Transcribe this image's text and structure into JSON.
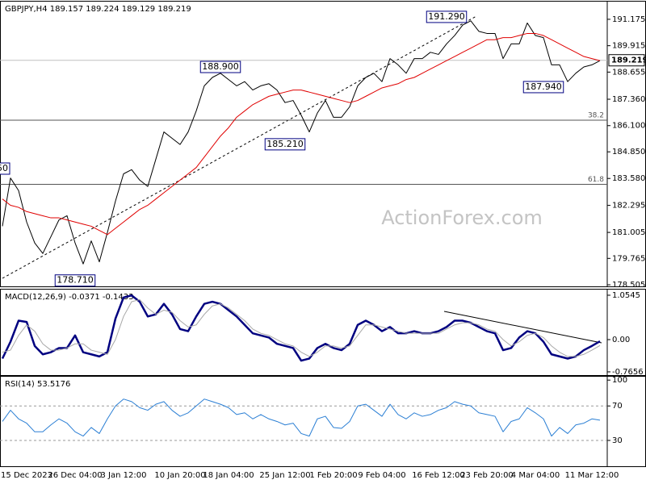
{
  "chart_data": [
    {
      "type": "line",
      "title": "GBPJPY,H4  189.157 189.224 189.129 189.219",
      "watermark": "ActionForex.com",
      "ylim": [
        178.43,
        191.98
      ],
      "yticks": [
        191.175,
        189.915,
        188.655,
        {
          "value": 187.36,
          "label": "187.360"
        },
        {
          "value": 186.1,
          "label": "186.100"
        },
        {
          "value": 184.85,
          "label": "184.850"
        },
        {
          "value": 183.58,
          "label": "183.580"
        },
        182.295,
        181.005,
        179.765,
        178.505
      ],
      "last": 189.219,
      "levels": [
        {
          "value": 186.36,
          "label": "38.2"
        },
        {
          "value": 183.3,
          "label": "61.8"
        }
      ],
      "level_style": "solid",
      "series": [
        {
          "color": "#000000",
          "line_width": 1,
          "values": [
            181.3,
            183.6,
            183.0,
            181.5,
            180.5,
            180.0,
            180.8,
            181.6,
            181.8,
            180.5,
            179.5,
            180.6,
            179.6,
            181.0,
            182.5,
            183.8,
            184.0,
            183.5,
            183.2,
            184.5,
            185.8,
            185.5,
            185.2,
            185.8,
            186.8,
            188.0,
            188.4,
            188.6,
            188.3,
            188.0,
            188.2,
            187.8,
            188.0,
            188.1,
            187.8,
            187.2,
            187.3,
            186.6,
            185.8,
            186.7,
            187.3,
            186.5,
            186.5,
            187.0,
            188.0,
            188.4,
            188.6,
            188.2,
            189.3,
            189.0,
            188.6,
            189.3,
            189.3,
            189.6,
            189.5,
            190.0,
            190.4,
            190.9,
            191.1,
            190.6,
            190.5,
            190.5,
            189.3,
            190.0,
            190.0,
            191.0,
            190.4,
            190.3,
            189.0,
            189.0,
            188.2,
            188.6,
            188.9,
            189.0,
            189.2
          ]
        },
        {
          "color": "#e00000",
          "line_width": 1,
          "values": [
            182.6,
            182.3,
            182.2,
            182.0,
            181.9,
            181.8,
            181.7,
            181.7,
            181.6,
            181.5,
            181.4,
            181.3,
            181.1,
            180.9,
            181.2,
            181.5,
            181.8,
            182.1,
            182.3,
            182.6,
            182.9,
            183.2,
            183.5,
            183.8,
            184.1,
            184.6,
            185.1,
            185.6,
            186.0,
            186.5,
            186.8,
            187.1,
            187.3,
            187.5,
            187.6,
            187.7,
            187.8,
            187.8,
            187.7,
            187.6,
            187.5,
            187.4,
            187.3,
            187.2,
            187.3,
            187.5,
            187.7,
            187.9,
            188.0,
            188.1,
            188.3,
            188.4,
            188.6,
            188.8,
            189.0,
            189.2,
            189.4,
            189.6,
            189.8,
            190.0,
            190.2,
            190.2,
            190.3,
            190.3,
            190.4,
            190.5,
            190.5,
            190.4,
            190.2,
            190.0,
            189.8,
            189.6,
            189.4,
            189.3,
            189.2
          ]
        }
      ],
      "annotations": [
        {
          "label": "191.290",
          "value": 191.29,
          "x": 55
        },
        {
          "label": "188.900",
          "value": 188.9,
          "x": 27
        },
        {
          "label": "185.210",
          "value": 185.21,
          "x": 35
        },
        {
          "label": "187.940",
          "value": 187.94,
          "x": 67
        },
        {
          "label": "178.710",
          "value": 178.71,
          "x": 9
        },
        {
          "label": "50",
          "value": 184.05,
          "x": 0
        }
      ]
    },
    {
      "type": "line",
      "title": "MACD(12,26,9) -0.0371 -0.1433",
      "ylim": [
        -0.843,
        1.169
      ],
      "yticks": [
        1.0545,
        {
          "value": 0,
          "label": "0.00"
        },
        -0.7656
      ],
      "series": [
        {
          "color": "#000080",
          "line_width": 2.5,
          "values": [
            -0.45,
            -0.05,
            0.45,
            0.42,
            -0.15,
            -0.35,
            -0.3,
            -0.2,
            -0.2,
            0.1,
            -0.3,
            -0.35,
            -0.4,
            -0.3,
            0.5,
            1.0,
            1.05,
            0.9,
            0.55,
            0.6,
            0.85,
            0.6,
            0.25,
            0.2,
            0.55,
            0.85,
            0.9,
            0.85,
            0.7,
            0.55,
            0.35,
            0.15,
            0.1,
            0.05,
            -0.1,
            -0.15,
            -0.2,
            -0.5,
            -0.45,
            -0.2,
            -0.1,
            -0.2,
            -0.25,
            -0.1,
            0.35,
            0.45,
            0.35,
            0.2,
            0.3,
            0.15,
            0.15,
            0.2,
            0.15,
            0.15,
            0.2,
            0.3,
            0.45,
            0.45,
            0.4,
            0.3,
            0.2,
            0.15,
            -0.25,
            -0.2,
            0.05,
            0.2,
            0.15,
            -0.05,
            -0.35,
            -0.4,
            -0.45,
            -0.4,
            -0.25,
            -0.15,
            -0.04
          ]
        },
        {
          "color": "#a8a8a8",
          "line_width": 1,
          "values": [
            -0.3,
            -0.25,
            0.1,
            0.35,
            0.2,
            -0.1,
            -0.25,
            -0.25,
            -0.2,
            -0.1,
            -0.1,
            -0.25,
            -0.3,
            -0.35,
            0.0,
            0.55,
            0.9,
            0.95,
            0.75,
            0.6,
            0.7,
            0.65,
            0.45,
            0.3,
            0.35,
            0.6,
            0.8,
            0.85,
            0.75,
            0.6,
            0.45,
            0.25,
            0.15,
            0.1,
            0.0,
            -0.1,
            -0.15,
            -0.3,
            -0.4,
            -0.3,
            -0.15,
            -0.15,
            -0.2,
            -0.15,
            0.1,
            0.35,
            0.35,
            0.3,
            0.25,
            0.2,
            0.15,
            0.15,
            0.15,
            0.15,
            0.15,
            0.25,
            0.35,
            0.4,
            0.4,
            0.35,
            0.25,
            0.2,
            0.0,
            -0.15,
            -0.05,
            0.1,
            0.15,
            0.05,
            -0.15,
            -0.3,
            -0.4,
            -0.4,
            -0.35,
            -0.25,
            -0.14
          ]
        }
      ]
    },
    {
      "type": "line",
      "title": "RSI(14) 53.5176",
      "ylim": [
        0,
        103
      ],
      "yticks": [
        100,
        70,
        30
      ],
      "levels": [
        70,
        30
      ],
      "level_style": "dashed",
      "categories": [
        null,
        null,
        null,
        "15 Dec 2023",
        null,
        null,
        null,
        null,
        null,
        "26 Dec 04:00",
        null,
        null,
        null,
        null,
        null,
        "3 Jan 12:00",
        null,
        null,
        null,
        null,
        null,
        null,
        "10 Jan 20:00",
        null,
        null,
        null,
        null,
        null,
        "18 Jan 04:00",
        null,
        null,
        null,
        null,
        null,
        null,
        "25 Jan 12:00",
        null,
        null,
        null,
        null,
        null,
        "1 Feb 20:00",
        null,
        null,
        null,
        null,
        null,
        "9 Feb 04:00",
        null,
        null,
        null,
        null,
        null,
        null,
        "16 Feb 12:00",
        null,
        null,
        null,
        null,
        null,
        "23 Feb 20:00",
        null,
        null,
        null,
        null,
        null,
        "4 Mar 04:00",
        null,
        null,
        null,
        null,
        null,
        null,
        "11 Mar 12:00",
        null
      ],
      "series": [
        {
          "color": "#2b7fd4",
          "line_width": 1,
          "values": [
            52,
            65,
            55,
            50,
            40,
            40,
            48,
            55,
            50,
            40,
            35,
            45,
            38,
            55,
            70,
            78,
            75,
            68,
            65,
            72,
            75,
            65,
            58,
            62,
            70,
            78,
            75,
            72,
            68,
            60,
            62,
            55,
            60,
            55,
            52,
            48,
            50,
            38,
            35,
            55,
            58,
            45,
            44,
            52,
            70,
            72,
            65,
            58,
            72,
            60,
            55,
            62,
            58,
            60,
            65,
            68,
            75,
            72,
            70,
            62,
            60,
            58,
            40,
            52,
            55,
            68,
            62,
            55,
            35,
            45,
            38,
            48,
            50,
            55,
            53.5
          ]
        }
      ]
    }
  ]
}
